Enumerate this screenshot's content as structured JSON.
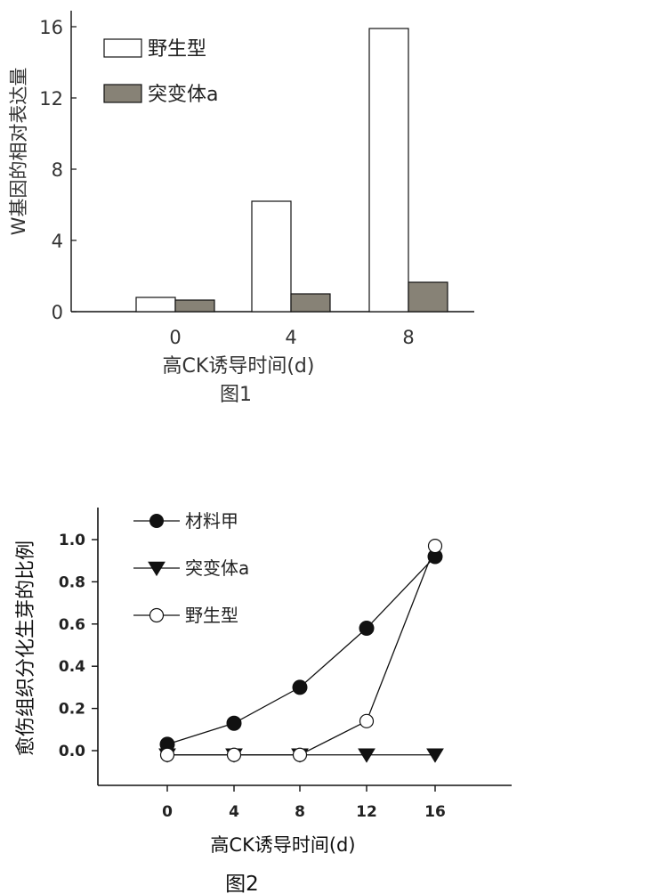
{
  "charts": {
    "chart_data": [
      {
        "type": "bar",
        "title": "图1",
        "xlabel": "高CK诱导时间(d)",
        "ylabel": "W基因的相对表达量",
        "categories": [
          "0",
          "4",
          "8"
        ],
        "series": [
          {
            "name": "野生型",
            "values": [
              0.8,
              6.2,
              15.9
            ]
          },
          {
            "name": "突变体a",
            "values": [
              0.65,
              1.0,
              1.65
            ]
          }
        ],
        "ylim": [
          0,
          16
        ],
        "yticks": [
          "0",
          "4",
          "8",
          "12",
          "16"
        ],
        "legend": "top-left",
        "grid": false
      },
      {
        "type": "line",
        "title": "图2",
        "xlabel": "高CK诱导时间(d)",
        "ylabel": "愈伤组织分化生芽的比例",
        "x": [
          0,
          4,
          8,
          12,
          16
        ],
        "xticks": [
          "0",
          "4",
          "8",
          "12",
          "16"
        ],
        "yticks": [
          "0.0",
          "0.2",
          "0.4",
          "0.6",
          "0.8",
          "1.0"
        ],
        "ylim": [
          -0.12,
          1.1
        ],
        "series": [
          {
            "name": "材料甲",
            "marker": "filled-circle",
            "values": [
              0.03,
              0.13,
              0.3,
              0.58,
              0.92
            ]
          },
          {
            "name": "突变体a",
            "marker": "filled-triangle-down",
            "values": [
              -0.02,
              -0.02,
              -0.02,
              -0.02,
              -0.02
            ]
          },
          {
            "name": "野生型",
            "marker": "open-circle",
            "values": [
              -0.02,
              -0.02,
              -0.02,
              0.14,
              0.97
            ]
          }
        ],
        "legend": "top-left",
        "grid": false
      }
    ]
  },
  "colors": {
    "wild_fill": "#ffffff",
    "mutant_fill": "#878276",
    "line": "#111111"
  }
}
